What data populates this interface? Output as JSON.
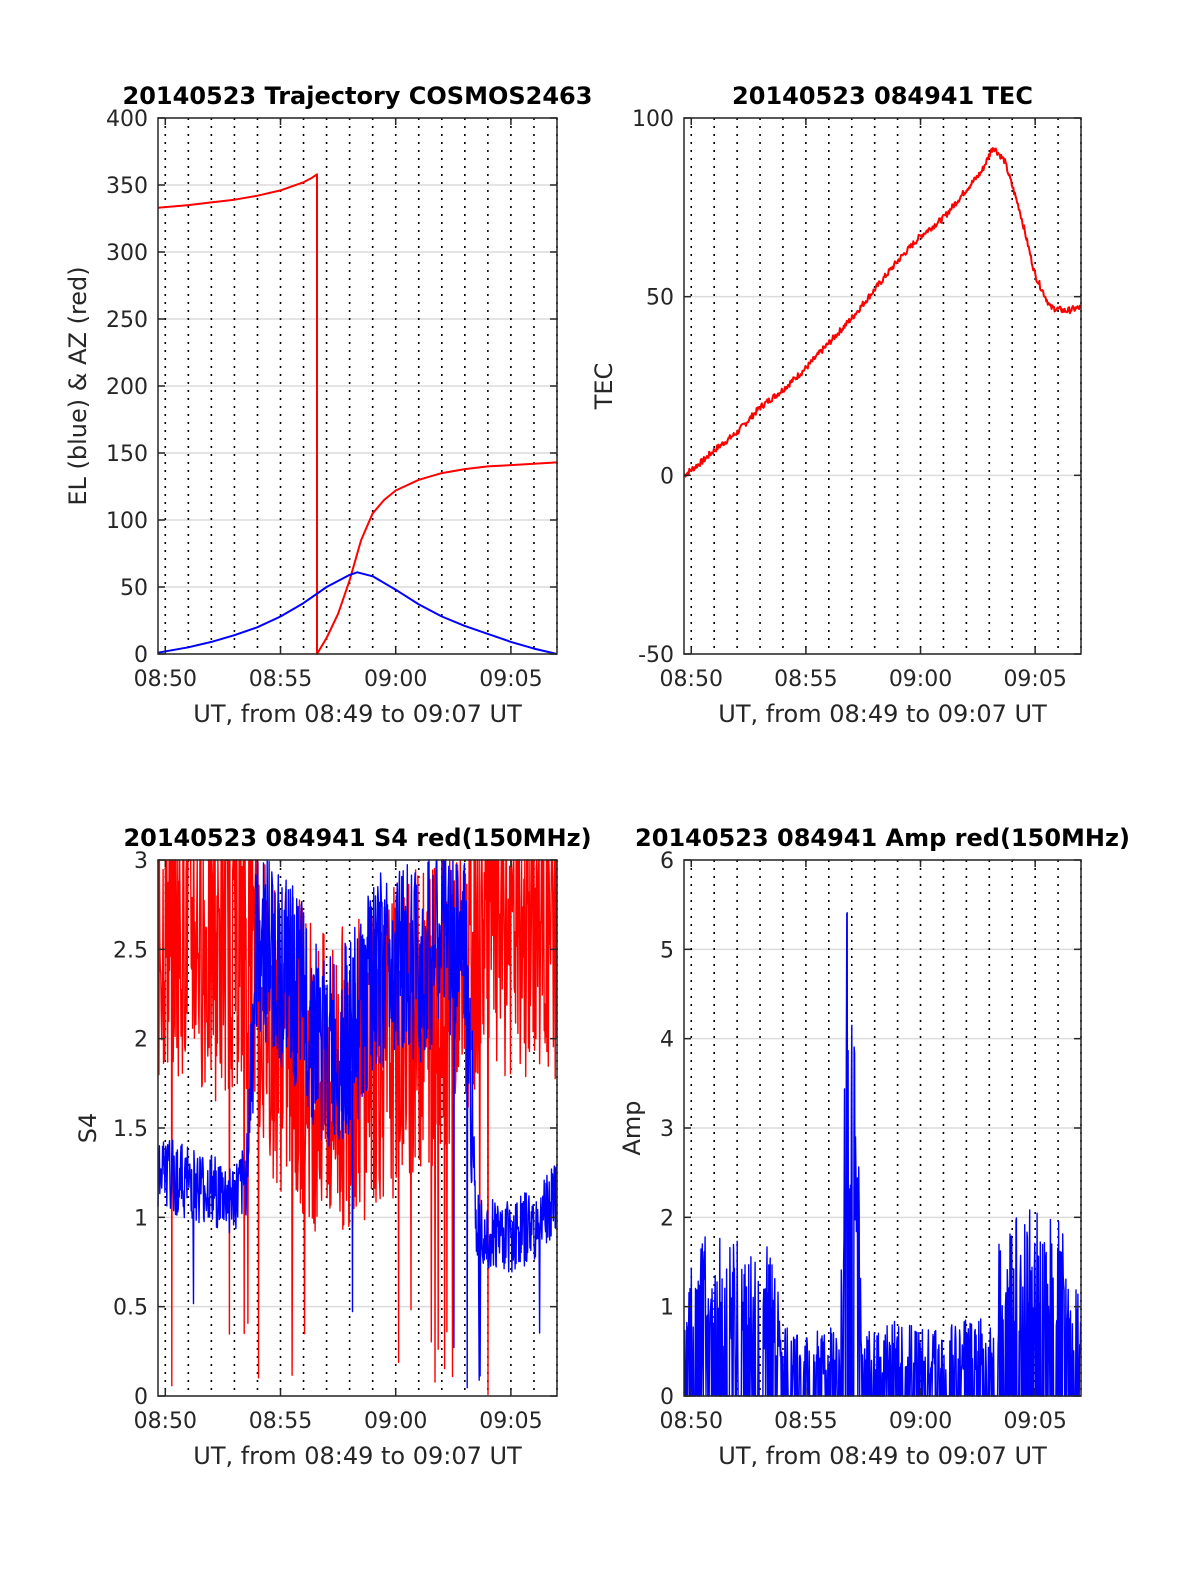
{
  "chart_data": [
    {
      "type": "line",
      "title": "20140523 Trajectory COSMOS2463",
      "xlabel": "UT, from 08:49 to 09:07 UT",
      "ylabel": "EL (blue) & AZ (red)",
      "xlim": [
        "08:49:41",
        "09:07:00"
      ],
      "ylim": [
        0,
        400
      ],
      "x_ticks": [
        "08:50",
        "08:55",
        "09:00",
        "09:05"
      ],
      "y_ticks": [
        "0",
        "50",
        "100",
        "150",
        "200",
        "250",
        "300",
        "350",
        "400"
      ],
      "grid": true,
      "series": [
        {
          "color": "#ff0000",
          "x": [
            "08:49:41",
            "08:51:00",
            "08:52:00",
            "08:53:00",
            "08:54:00",
            "08:55:00",
            "08:55:30",
            "08:56:00",
            "08:56:20",
            "08:56:35",
            "08:56:35",
            "08:57:00",
            "08:57:30",
            "08:58:00",
            "08:58:30",
            "08:59:00",
            "08:59:30",
            "09:00:00",
            "09:01:00",
            "09:02:00",
            "09:03:00",
            "09:04:00",
            "09:05:00",
            "09:06:00",
            "09:07:00"
          ],
          "values": [
            333,
            335,
            337,
            339,
            342,
            346,
            349,
            352,
            355,
            358,
            0,
            12,
            30,
            55,
            85,
            105,
            115,
            122,
            130,
            135,
            138,
            140,
            141,
            142,
            143
          ]
        },
        {
          "color": "#0000ff",
          "x": [
            "08:49:41",
            "08:51:00",
            "08:52:00",
            "08:53:00",
            "08:54:00",
            "08:55:00",
            "08:56:00",
            "08:57:00",
            "08:58:00",
            "08:58:20",
            "08:59:00",
            "09:00:00",
            "09:01:00",
            "09:02:00",
            "09:03:00",
            "09:04:00",
            "09:05:00",
            "09:06:00",
            "09:07:00"
          ],
          "values": [
            1,
            5,
            9,
            14,
            20,
            28,
            38,
            50,
            59,
            61,
            58,
            48,
            37,
            28,
            21,
            15,
            9,
            4,
            0
          ]
        }
      ]
    },
    {
      "type": "line",
      "title": "20140523 084941 TEC",
      "xlabel": "UT, from 08:49 to 09:07 UT",
      "ylabel": "TEC",
      "xlim": [
        "08:49:41",
        "09:07:00"
      ],
      "ylim": [
        -50,
        100
      ],
      "x_ticks": [
        "08:50",
        "08:55",
        "09:00",
        "09:05"
      ],
      "y_ticks": [
        "-50",
        "0",
        "50",
        "100"
      ],
      "grid": true,
      "series": [
        {
          "color": "#ff0000",
          "x": [
            "08:49:41",
            "08:50:30",
            "08:51:00",
            "08:52:00",
            "08:53:00",
            "08:54:00",
            "08:55:00",
            "08:56:00",
            "08:57:00",
            "08:58:00",
            "08:59:00",
            "09:00:00",
            "09:01:00",
            "09:02:00",
            "09:02:40",
            "09:03:10",
            "09:03:40",
            "09:04:20",
            "09:05:00",
            "09:05:40",
            "09:06:20",
            "09:07:00"
          ],
          "values": [
            0,
            4,
            7,
            12,
            19,
            24,
            30,
            37,
            44,
            52,
            60,
            67,
            72,
            80,
            85,
            92,
            88,
            74,
            56,
            47,
            46,
            47
          ]
        }
      ]
    },
    {
      "type": "line",
      "title": "20140523 084941 S4 red(150MHz)",
      "xlabel": "UT, from 08:49 to 09:07 UT",
      "ylabel": "S4",
      "xlim": [
        "08:49:41",
        "09:07:00"
      ],
      "ylim": [
        0,
        3
      ],
      "x_ticks": [
        "08:50",
        "08:55",
        "09:00",
        "09:05"
      ],
      "y_ticks": [
        "0",
        "0.5",
        "1",
        "1.5",
        "2",
        "2.5",
        "3"
      ],
      "grid": true,
      "series": [
        {
          "color": "#ff0000",
          "x": [
            "08:49:41",
            "08:51:00",
            "08:52:00",
            "08:53:00",
            "08:53:30",
            "08:54:00",
            "08:55:00",
            "08:56:00",
            "08:57:00",
            "08:58:00",
            "08:59:00",
            "09:00:00",
            "09:01:00",
            "09:02:00",
            "09:03:00",
            "09:03:30",
            "09:04:00",
            "09:05:00",
            "09:06:00",
            "09:07:00"
          ],
          "values": [
            2.6,
            2.7,
            2.5,
            2.6,
            2.5,
            2.3,
            2.0,
            1.9,
            1.7,
            1.8,
            1.9,
            2.0,
            2.1,
            2.2,
            2.4,
            2.6,
            2.7,
            2.6,
            2.7,
            2.5
          ]
        },
        {
          "color": "#0000ff",
          "x": [
            "08:49:41",
            "08:51:00",
            "08:52:00",
            "08:53:00",
            "08:53:30",
            "08:54:00",
            "08:55:00",
            "08:56:00",
            "08:57:00",
            "08:58:00",
            "08:59:00",
            "09:00:00",
            "09:01:00",
            "09:02:00",
            "09:03:00",
            "09:03:30",
            "09:04:00",
            "09:05:00",
            "09:06:00",
            "09:07:00"
          ],
          "values": [
            1.25,
            1.2,
            1.15,
            1.1,
            1.2,
            2.6,
            2.4,
            2.2,
            1.9,
            2.0,
            2.3,
            2.5,
            2.4,
            2.6,
            2.5,
            1.0,
            0.92,
            0.9,
            0.95,
            1.1
          ]
        }
      ]
    },
    {
      "type": "line",
      "title": "20140523 084941 Amp red(150MHz)",
      "xlabel": "UT, from 08:49 to 09:07 UT",
      "ylabel": "Amp",
      "xlim": [
        "08:49:41",
        "09:07:00"
      ],
      "ylim": [
        0,
        6
      ],
      "x_ticks": [
        "08:50",
        "08:55",
        "09:00",
        "09:05"
      ],
      "y_ticks": [
        "0",
        "1",
        "2",
        "3",
        "4",
        "5",
        "6"
      ],
      "grid": true,
      "series": [
        {
          "color": "#0000ff",
          "x": [
            "08:49:41",
            "08:51:00",
            "08:52:00",
            "08:53:00",
            "08:53:30",
            "08:54:00",
            "08:55:00",
            "08:56:00",
            "08:56:30",
            "08:56:50",
            "08:57:10",
            "08:57:30",
            "08:58:00",
            "08:59:00",
            "09:00:00",
            "09:01:00",
            "09:02:00",
            "09:03:00",
            "09:03:30",
            "09:04:00",
            "09:05:00",
            "09:06:00",
            "09:07:00"
          ],
          "values": [
            1.3,
            1.4,
            1.35,
            1.3,
            1.3,
            0.6,
            0.55,
            0.6,
            0.7,
            5.2,
            3.0,
            0.7,
            0.6,
            0.65,
            0.6,
            0.6,
            0.7,
            0.65,
            1.5,
            1.6,
            1.7,
            1.6,
            0.8
          ]
        }
      ]
    }
  ]
}
